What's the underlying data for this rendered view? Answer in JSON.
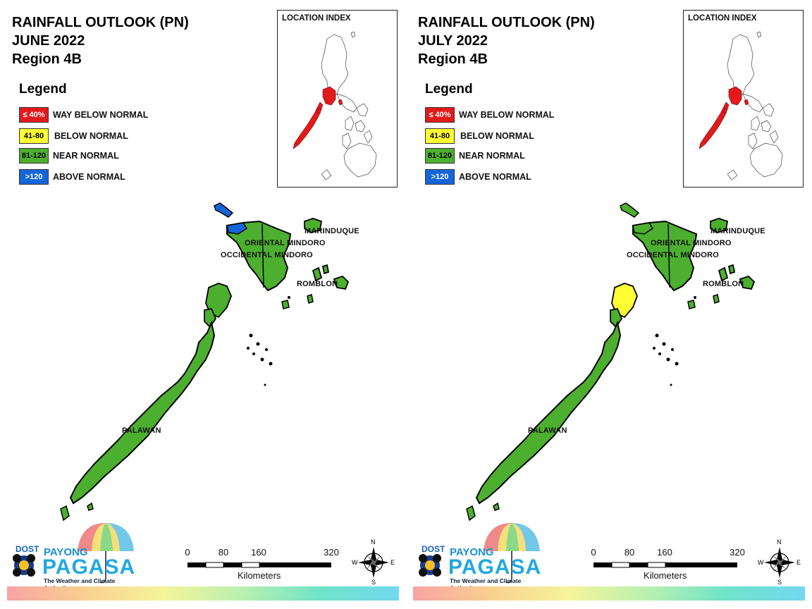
{
  "panels": [
    {
      "title_line1": "RAINFALL OUTLOOK (PN)",
      "title_line2": "JUNE 2022",
      "title_line3": "Region 4B",
      "legend_title": "Legend",
      "legend": [
        {
          "code": "≤ 40%",
          "label": "WAY BELOW NORMAL",
          "color": "#e31a1c",
          "text_color": "#ffffff"
        },
        {
          "code": "41-80",
          "label": "BELOW NORMAL",
          "color": "#ffff33",
          "text_color": "#000000"
        },
        {
          "code": "81-120",
          "label": "NEAR NORMAL",
          "color": "#4daf2f",
          "text_color": "#000000"
        },
        {
          "code": ">120",
          "label": "ABOVE NORMAL",
          "color": "#1565d8",
          "text_color": "#ffffff"
        }
      ],
      "index_title": "LOCATION INDEX",
      "provinces": {
        "marinduque": "MARINDUQUE",
        "oriental_mindoro": "ORIENTAL MINDORO",
        "occidental_mindoro": "OCCIDENTAL MINDORO",
        "romblon": "ROMBLON",
        "palawan": "PALAWAN"
      },
      "map_categories": {
        "mindoro_northwest": "ABOVE NORMAL",
        "calamian_islands": "NEAR NORMAL"
      },
      "logo": {
        "dost": "DOST",
        "payong": "PAYONG",
        "pagasa": "PAGASA",
        "tagline": "The Weather and Climate Authority"
      },
      "scale": {
        "ticks": [
          "0",
          "80",
          "160",
          "320"
        ],
        "unit": "Kilometers"
      },
      "compass": {
        "n": "N",
        "e": "E",
        "s": "S",
        "w": "W"
      }
    },
    {
      "title_line1": "RAINFALL OUTLOOK (PN)",
      "title_line2": "JULY 2022",
      "title_line3": "Region 4B",
      "legend_title": "Legend",
      "legend": [
        {
          "code": "≤ 40%",
          "label": "WAY BELOW NORMAL",
          "color": "#e31a1c",
          "text_color": "#ffffff"
        },
        {
          "code": "41-80",
          "label": "BELOW NORMAL",
          "color": "#ffff33",
          "text_color": "#000000"
        },
        {
          "code": "81-120",
          "label": "NEAR NORMAL",
          "color": "#4daf2f",
          "text_color": "#000000"
        },
        {
          "code": ">120",
          "label": "ABOVE NORMAL",
          "color": "#1565d8",
          "text_color": "#ffffff"
        }
      ],
      "index_title": "LOCATION INDEX",
      "provinces": {
        "marinduque": "MARINDUQUE",
        "oriental_mindoro": "ORIENTAL MINDORO",
        "occidental_mindoro": "OCCIDENTAL MINDORO",
        "romblon": "ROMBLON",
        "palawan": "PALAWAN"
      },
      "map_categories": {
        "mindoro_northwest": "NEAR NORMAL",
        "calamian_islands": "BELOW NORMAL"
      },
      "logo": {
        "dost": "DOST",
        "payong": "PAYONG",
        "pagasa": "PAGASA",
        "tagline": "The Weather and Climate Authority"
      },
      "scale": {
        "ticks": [
          "0",
          "80",
          "160",
          "320"
        ],
        "unit": "Kilometers"
      },
      "compass": {
        "n": "N",
        "e": "E",
        "s": "S",
        "w": "W"
      }
    }
  ]
}
